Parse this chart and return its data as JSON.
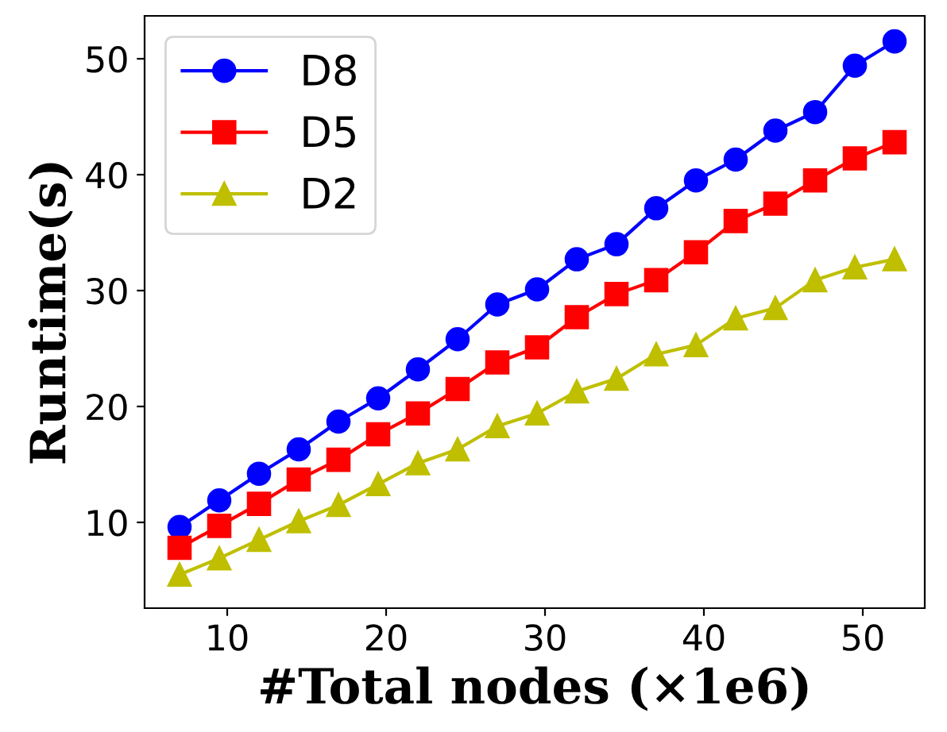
{
  "chart_data": {
    "type": "line",
    "xlabel": "#Total nodes (×1e6)",
    "ylabel": "Runtime(s)",
    "x": [
      7,
      9.5,
      12,
      14.5,
      17,
      19.5,
      22,
      24.5,
      27,
      29.5,
      32,
      34.5,
      37,
      39.5,
      42,
      44.5,
      47,
      49.5,
      52
    ],
    "series": [
      {
        "name": "D8",
        "color": "#0000ff",
        "marker": "circle",
        "values": [
          9.6,
          11.9,
          14.2,
          16.3,
          18.7,
          20.7,
          23.2,
          25.8,
          28.8,
          30.1,
          32.7,
          34.0,
          37.1,
          39.5,
          41.3,
          43.8,
          45.4,
          49.4,
          51.5
        ]
      },
      {
        "name": "D5",
        "color": "#ff0000",
        "marker": "square",
        "values": [
          7.8,
          9.7,
          11.6,
          13.7,
          15.4,
          17.6,
          19.4,
          21.5,
          23.8,
          25.1,
          27.7,
          29.7,
          30.9,
          33.3,
          36.0,
          37.5,
          39.5,
          41.4,
          42.8
        ]
      },
      {
        "name": "D2",
        "color": "#bfbf00",
        "marker": "triangle",
        "values": [
          5.5,
          6.9,
          8.5,
          10.1,
          11.5,
          13.3,
          15.1,
          16.3,
          18.3,
          19.4,
          21.3,
          22.4,
          24.5,
          25.3,
          27.6,
          28.5,
          30.9,
          32.0,
          32.7
        ]
      }
    ],
    "xlim": [
      4.8,
      53.9
    ],
    "ylim": [
      2.6,
      53.7
    ],
    "xticks": [
      10,
      20,
      30,
      40,
      50
    ],
    "yticks": [
      10,
      20,
      30,
      40,
      50
    ],
    "grid": false,
    "legend": "top left",
    "line_style": "solid"
  }
}
